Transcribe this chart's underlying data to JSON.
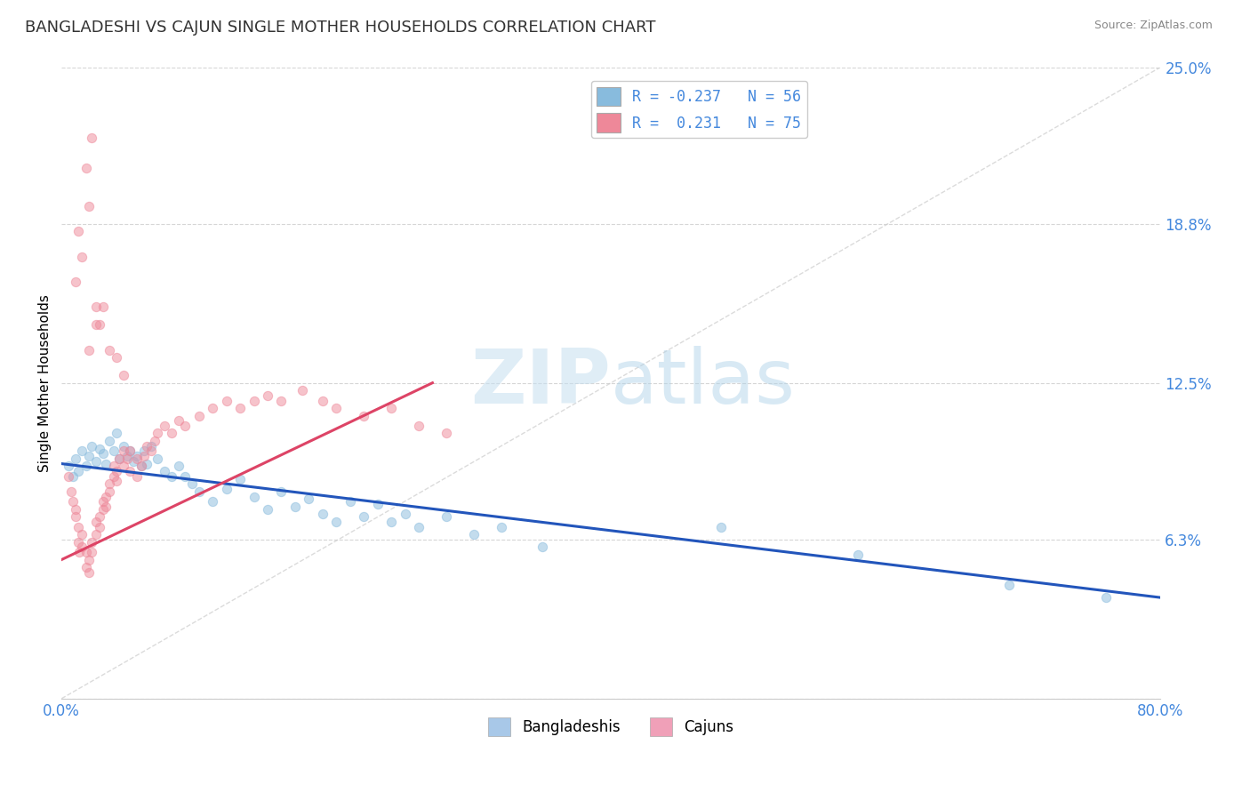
{
  "title": "BANGLADESHI VS CAJUN SINGLE MOTHER HOUSEHOLDS CORRELATION CHART",
  "source": "Source: ZipAtlas.com",
  "ylabel": "Single Mother Households",
  "watermark_zip": "ZIP",
  "watermark_atlas": "atlas",
  "legend_line1": "R = -0.237   N = 56",
  "legend_line2": "R =  0.231   N = 75",
  "bottom_legend": [
    "Bangladeshis",
    "Cajuns"
  ],
  "bottom_legend_colors": [
    "#a8c8e8",
    "#f0a0b8"
  ],
  "xlim": [
    0.0,
    0.8
  ],
  "ylim": [
    0.0,
    0.25
  ],
  "yticks": [
    0.0,
    0.063,
    0.125,
    0.188,
    0.25
  ],
  "ytick_labels": [
    "",
    "6.3%",
    "12.5%",
    "18.8%",
    "25.0%"
  ],
  "xtick_labels": [
    "0.0%",
    "80.0%"
  ],
  "grid_color": "#cccccc",
  "title_fontsize": 13,
  "axis_label_color": "#4488dd",
  "blue_scatter": [
    [
      0.005,
      0.092
    ],
    [
      0.008,
      0.088
    ],
    [
      0.01,
      0.095
    ],
    [
      0.012,
      0.09
    ],
    [
      0.015,
      0.098
    ],
    [
      0.018,
      0.092
    ],
    [
      0.02,
      0.096
    ],
    [
      0.022,
      0.1
    ],
    [
      0.025,
      0.094
    ],
    [
      0.028,
      0.099
    ],
    [
      0.03,
      0.097
    ],
    [
      0.032,
      0.093
    ],
    [
      0.035,
      0.102
    ],
    [
      0.038,
      0.098
    ],
    [
      0.04,
      0.105
    ],
    [
      0.042,
      0.095
    ],
    [
      0.045,
      0.1
    ],
    [
      0.048,
      0.096
    ],
    [
      0.05,
      0.098
    ],
    [
      0.052,
      0.094
    ],
    [
      0.055,
      0.096
    ],
    [
      0.058,
      0.092
    ],
    [
      0.06,
      0.098
    ],
    [
      0.062,
      0.093
    ],
    [
      0.065,
      0.1
    ],
    [
      0.07,
      0.095
    ],
    [
      0.075,
      0.09
    ],
    [
      0.08,
      0.088
    ],
    [
      0.085,
      0.092
    ],
    [
      0.09,
      0.088
    ],
    [
      0.095,
      0.085
    ],
    [
      0.1,
      0.082
    ],
    [
      0.11,
      0.078
    ],
    [
      0.12,
      0.083
    ],
    [
      0.13,
      0.087
    ],
    [
      0.14,
      0.08
    ],
    [
      0.15,
      0.075
    ],
    [
      0.16,
      0.082
    ],
    [
      0.17,
      0.076
    ],
    [
      0.18,
      0.079
    ],
    [
      0.19,
      0.073
    ],
    [
      0.2,
      0.07
    ],
    [
      0.21,
      0.078
    ],
    [
      0.22,
      0.072
    ],
    [
      0.23,
      0.077
    ],
    [
      0.24,
      0.07
    ],
    [
      0.25,
      0.073
    ],
    [
      0.26,
      0.068
    ],
    [
      0.28,
      0.072
    ],
    [
      0.3,
      0.065
    ],
    [
      0.32,
      0.068
    ],
    [
      0.35,
      0.06
    ],
    [
      0.48,
      0.068
    ],
    [
      0.58,
      0.057
    ],
    [
      0.69,
      0.045
    ],
    [
      0.76,
      0.04
    ]
  ],
  "pink_scatter": [
    [
      0.005,
      0.088
    ],
    [
      0.007,
      0.082
    ],
    [
      0.008,
      0.078
    ],
    [
      0.01,
      0.075
    ],
    [
      0.01,
      0.072
    ],
    [
      0.012,
      0.068
    ],
    [
      0.012,
      0.062
    ],
    [
      0.013,
      0.058
    ],
    [
      0.015,
      0.065
    ],
    [
      0.015,
      0.06
    ],
    [
      0.018,
      0.058
    ],
    [
      0.018,
      0.052
    ],
    [
      0.02,
      0.055
    ],
    [
      0.02,
      0.05
    ],
    [
      0.022,
      0.062
    ],
    [
      0.022,
      0.058
    ],
    [
      0.025,
      0.065
    ],
    [
      0.025,
      0.07
    ],
    [
      0.028,
      0.072
    ],
    [
      0.028,
      0.068
    ],
    [
      0.03,
      0.075
    ],
    [
      0.03,
      0.078
    ],
    [
      0.032,
      0.08
    ],
    [
      0.032,
      0.076
    ],
    [
      0.035,
      0.082
    ],
    [
      0.035,
      0.085
    ],
    [
      0.038,
      0.088
    ],
    [
      0.038,
      0.092
    ],
    [
      0.04,
      0.09
    ],
    [
      0.04,
      0.086
    ],
    [
      0.042,
      0.095
    ],
    [
      0.045,
      0.098
    ],
    [
      0.045,
      0.092
    ],
    [
      0.048,
      0.095
    ],
    [
      0.05,
      0.098
    ],
    [
      0.05,
      0.09
    ],
    [
      0.055,
      0.095
    ],
    [
      0.055,
      0.088
    ],
    [
      0.058,
      0.092
    ],
    [
      0.06,
      0.096
    ],
    [
      0.062,
      0.1
    ],
    [
      0.065,
      0.098
    ],
    [
      0.068,
      0.102
    ],
    [
      0.07,
      0.105
    ],
    [
      0.075,
      0.108
    ],
    [
      0.08,
      0.105
    ],
    [
      0.085,
      0.11
    ],
    [
      0.09,
      0.108
    ],
    [
      0.1,
      0.112
    ],
    [
      0.11,
      0.115
    ],
    [
      0.12,
      0.118
    ],
    [
      0.13,
      0.115
    ],
    [
      0.14,
      0.118
    ],
    [
      0.15,
      0.12
    ],
    [
      0.16,
      0.118
    ],
    [
      0.175,
      0.122
    ],
    [
      0.19,
      0.118
    ],
    [
      0.2,
      0.115
    ],
    [
      0.22,
      0.112
    ],
    [
      0.24,
      0.115
    ],
    [
      0.26,
      0.108
    ],
    [
      0.28,
      0.105
    ],
    [
      0.02,
      0.138
    ],
    [
      0.025,
      0.148
    ],
    [
      0.03,
      0.155
    ],
    [
      0.01,
      0.165
    ],
    [
      0.015,
      0.175
    ],
    [
      0.012,
      0.185
    ],
    [
      0.02,
      0.195
    ],
    [
      0.018,
      0.21
    ],
    [
      0.022,
      0.222
    ],
    [
      0.025,
      0.155
    ],
    [
      0.028,
      0.148
    ],
    [
      0.035,
      0.138
    ],
    [
      0.04,
      0.135
    ],
    [
      0.045,
      0.128
    ]
  ],
  "blue_line": {
    "x0": 0.0,
    "x1": 0.8,
    "y0": 0.093,
    "y1": 0.04
  },
  "pink_line": {
    "x0": 0.0,
    "x1": 0.27,
    "y0": 0.055,
    "y1": 0.125
  },
  "diagonal_line_color": "#cccccc",
  "blue_line_color": "#2255bb",
  "pink_line_color": "#dd4466",
  "blue_dot_color": "#88bbdd",
  "pink_dot_color": "#ee8899",
  "dot_size": 55,
  "dot_alpha": 0.5,
  "dot_linewidth": 0.8
}
